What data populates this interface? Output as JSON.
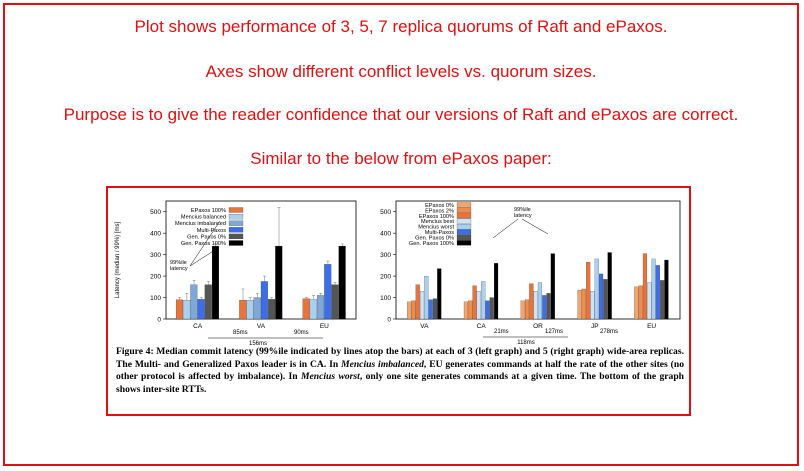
{
  "annotations": [
    "Plot shows performance of 3, 5, 7 replica quorums of Raft and ePaxos.",
    "Axes show different conflict levels vs. quorum sizes.",
    "Purpose is to give the reader confidence that our versions of Raft and ePaxos are correct.",
    "Similar to the below from ePaxos paper:"
  ],
  "colors": {
    "accent": "#e01010"
  },
  "chart_data": [
    {
      "type": "bar",
      "ylabel": "Latency (median / 99%) [ms]",
      "ylim": [
        0,
        550
      ],
      "yticks": [
        0,
        100,
        200,
        300,
        400,
        500
      ],
      "categories": [
        "CA",
        "VA",
        "EU"
      ],
      "series": [
        {
          "name": "EPaxos 100%",
          "color": "#e8743b",
          "values": [
            90,
            88,
            95
          ],
          "p99": [
            100,
            140,
            100
          ]
        },
        {
          "name": "Mencius balanced",
          "color": "#a9d0f0",
          "values": [
            88,
            88,
            92
          ],
          "p99": [
            120,
            100,
            110
          ]
        },
        {
          "name": "Mencius imbalanced",
          "color": "#7fa8d8",
          "values": [
            160,
            100,
            110
          ],
          "p99": [
            180,
            120,
            120
          ]
        },
        {
          "name": "Multi-Paxos",
          "color": "#3d6ee8",
          "values": [
            92,
            175,
            255
          ],
          "p99": [
            100,
            200,
            270
          ]
        },
        {
          "name": "Gen. Paxos 0%",
          "color": "#555555",
          "values": [
            160,
            92,
            160
          ],
          "p99": [
            175,
            100,
            170
          ]
        },
        {
          "name": "Gen. Paxos 100%",
          "color": "#000000",
          "values": [
            340,
            340,
            340
          ],
          "p99": [
            350,
            520,
            350
          ]
        }
      ],
      "annotations": [
        "99%ile latency",
        "85ms",
        "90ms",
        "156ms"
      ]
    },
    {
      "type": "bar",
      "ylim": [
        0,
        550
      ],
      "yticks": [
        0,
        100,
        200,
        300,
        400,
        500
      ],
      "categories": [
        "VA",
        "CA",
        "OR",
        "JP",
        "EU"
      ],
      "series": [
        {
          "name": "EPaxos 0%",
          "color": "#f2a56b",
          "values": [
            80,
            80,
            85,
            135,
            150
          ]
        },
        {
          "name": "EPaxos 2%",
          "color": "#f08b4b",
          "values": [
            85,
            85,
            90,
            140,
            155
          ]
        },
        {
          "name": "EPaxos 100%",
          "color": "#e8743b",
          "values": [
            160,
            155,
            165,
            265,
            305
          ]
        },
        {
          "name": "Mencius best",
          "color": "#cfe3f5",
          "values": [
            130,
            130,
            130,
            130,
            170
          ]
        },
        {
          "name": "Mencius worst",
          "color": "#a9d0f0",
          "values": [
            200,
            175,
            170,
            280,
            280
          ]
        },
        {
          "name": "Multi-Paxos",
          "color": "#3d6ee8",
          "values": [
            90,
            85,
            110,
            210,
            250
          ]
        },
        {
          "name": "Gen. Paxos 0%",
          "color": "#555555",
          "values": [
            95,
            100,
            120,
            185,
            180
          ]
        },
        {
          "name": "Gen. Paxos 100%",
          "color": "#000000",
          "values": [
            235,
            260,
            305,
            310,
            275
          ]
        }
      ],
      "annotations": [
        "99%ile latency",
        "21ms",
        "127ms",
        "278ms",
        "118ms"
      ]
    }
  ],
  "figure": {
    "caption_label": "Figure 4:",
    "caption_parts": [
      " Median commit latency (99%ile indicated by lines atop the bars) at each of 3 (left graph) and 5 (right graph) wide-area replicas. The Multi- and Generalized Paxos leader is in CA. In ",
      "Mencius imbalanced",
      ", EU generates commands at half the rate of the other sites (no other protocol is affected by imbalance). In ",
      "Mencius worst",
      ", only one site generates commands at a given time. The bottom of the graph shows inter-site RTTs."
    ]
  }
}
